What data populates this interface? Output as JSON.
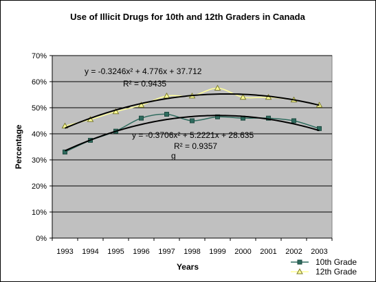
{
  "chart_data": {
    "type": "line",
    "title": "Use of Illicit Drugs for 10th and 12th Graders in Canada",
    "xlabel": "Years",
    "ylabel": "Percentage",
    "categories": [
      "1993",
      "1994",
      "1995",
      "1996",
      "1997",
      "1998",
      "1999",
      "2000",
      "2001",
      "2002",
      "2003"
    ],
    "ylim": [
      0,
      70
    ],
    "y_ticks": [
      "0%",
      "10%",
      "20%",
      "30%",
      "40%",
      "50%",
      "60%",
      "70%"
    ],
    "grid": true,
    "legend_position": "bottom-right",
    "series": [
      {
        "name": "10th Grade",
        "marker": "square",
        "color": "#2E6B5E",
        "values": [
          33,
          37.5,
          41,
          46,
          47.5,
          45,
          46.5,
          46,
          46,
          45,
          42
        ],
        "trendline": {
          "equation": "y = -0.3706x² + 5.2221x + 28.635",
          "r_squared": "R² = 0.9357",
          "a": -0.3706,
          "b": 5.2221,
          "c": 28.635
        }
      },
      {
        "name": "12th Grade",
        "marker": "triangle",
        "color": "#FFFF99",
        "values": [
          43,
          45.5,
          48.5,
          51,
          54.5,
          54.5,
          57.5,
          54,
          54,
          53,
          51
        ],
        "trendline": {
          "equation": "y = -0.3246x² + 4.776x + 37.712",
          "r_squared": "R² = 0.9435",
          "a": -0.3246,
          "b": 4.776,
          "c": 37.712
        }
      }
    ],
    "stray_label": "g"
  },
  "colors": {
    "plot_area": "#C0C0C0",
    "gridline": "#000000",
    "trendline": "#000000",
    "line_10th": "#2E6B5E",
    "line_12th": "#FFFF99"
  }
}
